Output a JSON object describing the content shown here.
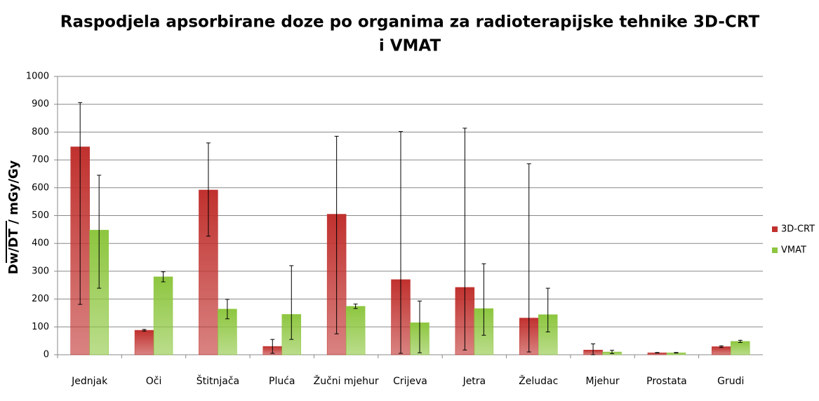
{
  "chart_data": {
    "type": "bar",
    "title": [
      "Raspodjela apsorbirane doze po organima za radioterapijske tehnike 3D-CRT",
      "i VMAT"
    ],
    "ylabel": "Dw/DT / mGy/Gy",
    "categories": [
      "Jednjak",
      "Oči",
      "Štitnjača",
      "Pluća",
      "Žučni mjehur",
      "Crijeva",
      "Jetra",
      "Želudac",
      "Mjehur",
      "Prostata",
      "Grudi"
    ],
    "series": [
      {
        "name": "3D-CRT",
        "color": "#c0312e",
        "values": [
          747,
          88,
          592,
          30,
          505,
          270,
          242,
          132,
          17,
          7,
          29
        ],
        "errors_minus": [
          566,
          3,
          166,
          25,
          430,
          265,
          225,
          122,
          17,
          1,
          3
        ],
        "errors_plus": [
          159,
          3,
          169,
          25,
          280,
          532,
          572,
          554,
          22,
          1,
          3
        ]
      },
      {
        "name": "VMAT",
        "color": "#8dc63f",
        "values": [
          448,
          280,
          164,
          145,
          174,
          115,
          166,
          144,
          10,
          7,
          48
        ],
        "errors_minus": [
          209,
          18,
          35,
          90,
          8,
          108,
          96,
          62,
          6,
          1,
          4
        ],
        "errors_plus": [
          197,
          18,
          35,
          175,
          8,
          78,
          161,
          95,
          6,
          1,
          4
        ]
      }
    ],
    "ylim": [
      0,
      1000
    ],
    "yticks": [
      0,
      100,
      200,
      300,
      400,
      500,
      600,
      700,
      800,
      900,
      1000
    ],
    "grid": true,
    "legend": "right"
  }
}
